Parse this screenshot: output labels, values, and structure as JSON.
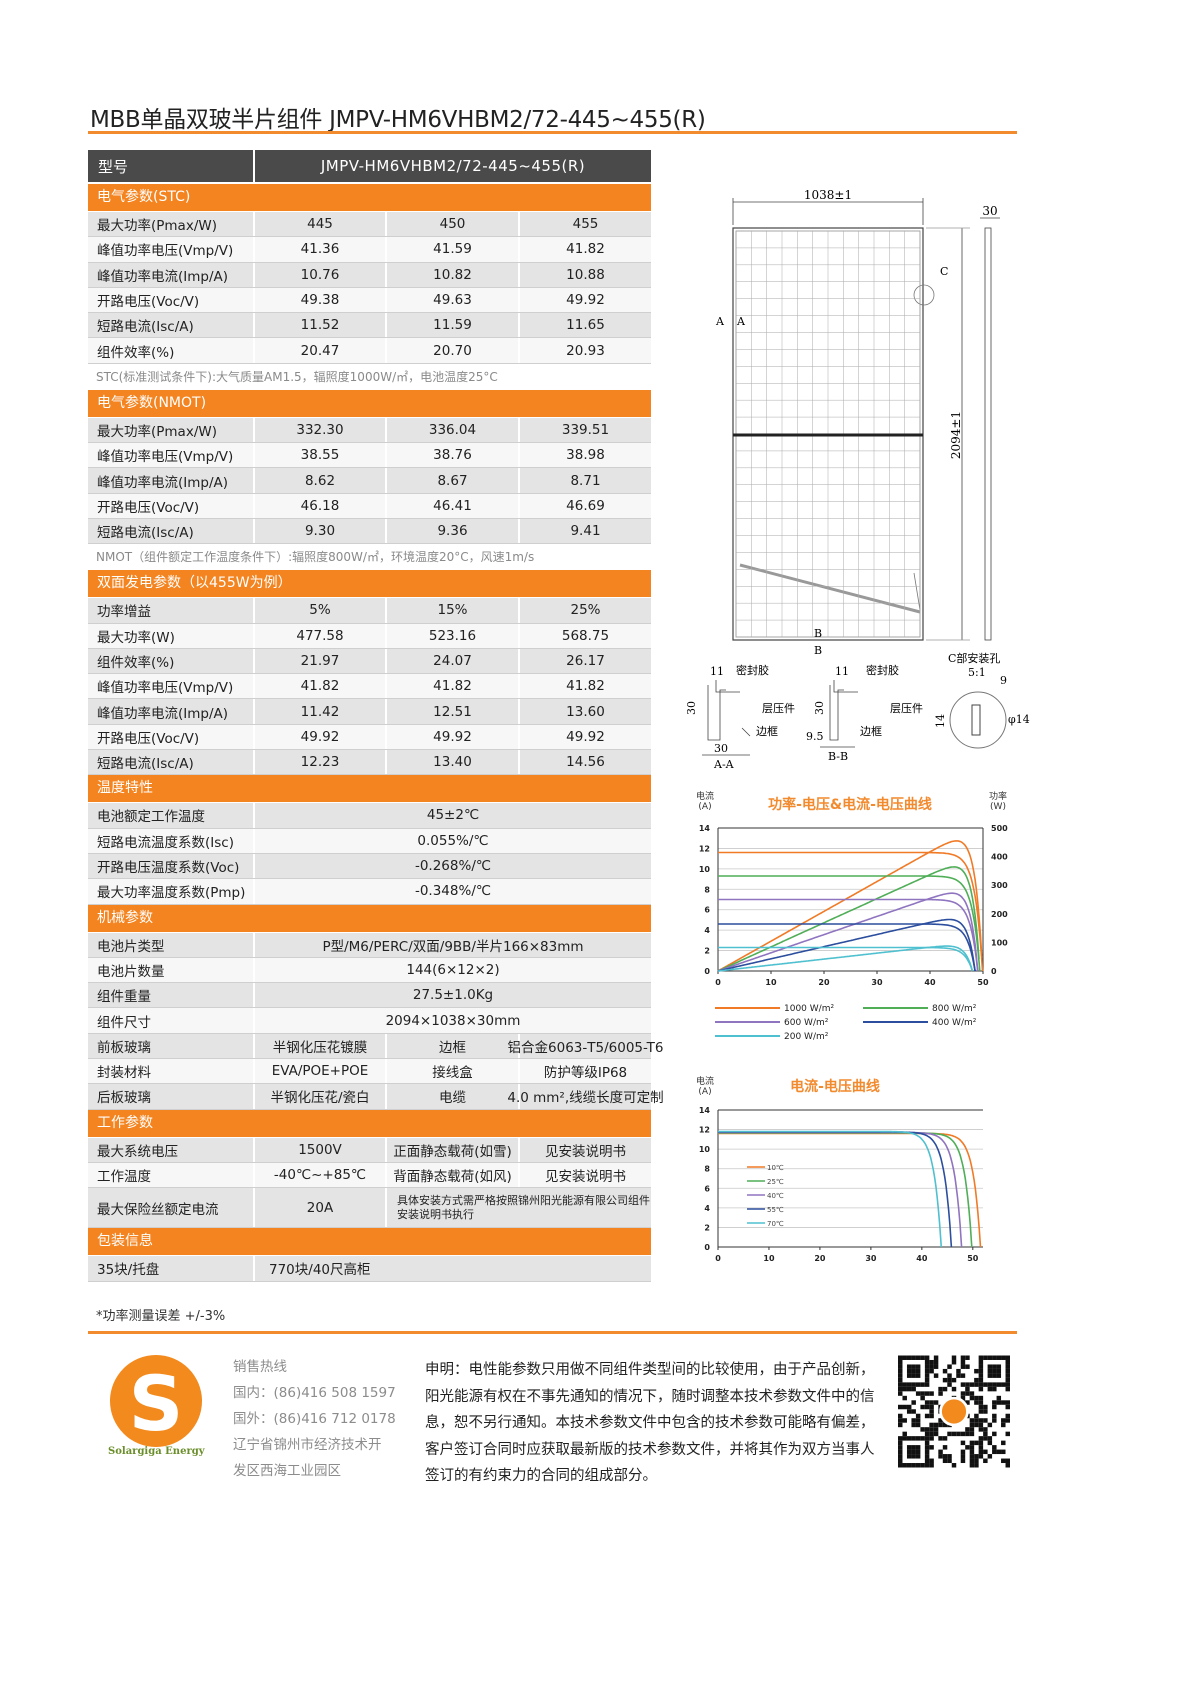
{
  "title": "MBB单晶双玻半片组件  JMPV-HM6VHBM2/72-445~455(R)",
  "spec_table": {
    "header": [
      "型号",
      "JMPV-HM6VHBM2/72-445~455(R)"
    ],
    "sections": [
      {
        "title": "电气参数(STC)",
        "rows": [
          [
            "最大功率(Pmax/W)",
            "445",
            "450",
            "455"
          ],
          [
            "峰值功率电压(Vmp/V)",
            "41.36",
            "41.59",
            "41.82"
          ],
          [
            "峰值功率电流(Imp/A)",
            "10.76",
            "10.82",
            "10.88"
          ],
          [
            "开路电压(Voc/V)",
            "49.38",
            "49.63",
            "49.92"
          ],
          [
            "短路电流(Isc/A)",
            "11.52",
            "11.59",
            "11.65"
          ],
          [
            "组件效率(%)",
            "20.47",
            "20.70",
            "20.93"
          ]
        ],
        "note": "STC(标准测试条件下):大气质量AM1.5，辐照度1000W/㎡，电池温度25°C"
      },
      {
        "title": "电气参数(NMOT)",
        "rows": [
          [
            "最大功率(Pmax/W)",
            "332.30",
            "336.04",
            "339.51"
          ],
          [
            "峰值功率电压(Vmp/V)",
            "38.55",
            "38.76",
            "38.98"
          ],
          [
            "峰值功率电流(Imp/A)",
            "8.62",
            "8.67",
            "8.71"
          ],
          [
            "开路电压(Voc/V)",
            "46.18",
            "46.41",
            "46.69"
          ],
          [
            "短路电流(Isc/A)",
            "9.30",
            "9.36",
            "9.41"
          ]
        ],
        "note": "NMOT（组件额定工作温度条件下）:辐照度800W/㎡，环境温度20°C，风速1m/s"
      },
      {
        "title": "双面发电参数（以455W为例）",
        "rows": [
          [
            "功率增益",
            "5%",
            "15%",
            "25%"
          ],
          [
            "最大功率(W)",
            "477.58",
            "523.16",
            "568.75"
          ],
          [
            "组件效率(%)",
            "21.97",
            "24.07",
            "26.17"
          ],
          [
            "峰值功率电压(Vmp/V)",
            "41.82",
            "41.82",
            "41.82"
          ],
          [
            "峰值功率电流(Imp/A)",
            "11.42",
            "12.51",
            "13.60"
          ],
          [
            "开路电压(Voc/V)",
            "49.92",
            "49.92",
            "49.92"
          ],
          [
            "短路电流(Isc/A)",
            "12.23",
            "13.40",
            "14.56"
          ]
        ]
      },
      {
        "title": "温度特性",
        "rows": [
          [
            "电池额定工作温度",
            "45±2℃"
          ],
          [
            "短路电流温度系数(Isc)",
            "0.055%/℃"
          ],
          [
            "开路电压温度系数(Voc)",
            "-0.268%/℃"
          ],
          [
            "最大功率温度系数(Pmp)",
            "-0.348%/℃"
          ]
        ]
      },
      {
        "title": "机械参数",
        "rows": [
          [
            "电池片类型",
            "P型/M6/PERC/双面/9BB/半片166×83mm"
          ],
          [
            "电池片数量",
            "144(6×12×2)"
          ],
          [
            "组件重量",
            "27.5±1.0Kg"
          ],
          [
            "组件尺寸",
            "2094×1038×30mm"
          ],
          [
            "前板玻璃",
            "半钢化压花镀膜",
            "边框",
            "铝合金6063-T5/6005-T6"
          ],
          [
            "封装材料",
            "EVA/POE+POE",
            "接线盒",
            "防护等级IP68"
          ],
          [
            "后板玻璃",
            "半钢化压花/瓷白",
            "电缆",
            "4.0 mm²,线缆长度可定制"
          ]
        ]
      },
      {
        "title": "工作参数",
        "rows": [
          [
            "最大系统电压",
            "1500V",
            "正面静态载荷(如雪)",
            "见安装说明书"
          ],
          [
            "工作温度",
            "-40℃~+85℃",
            "背面静态载荷(如风)",
            "见安装说明书"
          ],
          [
            "最大保险丝额定电流",
            "20A",
            "具体安装方式需严格按照锦州阳光能源有限公司组件安装说明书执行"
          ]
        ]
      },
      {
        "title": "包装信息",
        "rows": [
          [
            "35块/托盘",
            "770块/40尺高柜"
          ]
        ]
      }
    ]
  },
  "power_note": "*功率测量误差  +/-3%",
  "drawing": {
    "width_dim": "1038±1",
    "depth_dim": "30",
    "height_dim": "2094±1",
    "detail_c": "C",
    "section_a": "A",
    "section_a2": "A",
    "section_b": "B",
    "section_b2": "B",
    "aa": {
      "dim_top": "11",
      "seal": "密封胶",
      "laminate": "层压件",
      "height": "30",
      "frame": "边框",
      "width": "30",
      "label": "A-A"
    },
    "bb": {
      "dim_top": "11",
      "seal": "密封胶",
      "laminate": "层压件",
      "height": "30",
      "frame": "边框",
      "width": "9.5",
      "label": "B-B"
    },
    "c_detail": {
      "title": "C部安装孔",
      "scale": "5:1",
      "dim_a": "9",
      "dim_b": "14",
      "hole": "φ14"
    }
  },
  "chart_data": [
    {
      "type": "line",
      "title": "功率-电压&电流-电压曲线",
      "ylabel": "电流\n(A)",
      "y2label": "功率\n(W)",
      "xlim": [
        0,
        50
      ],
      "ylim": [
        0,
        14
      ],
      "y2lim": [
        0,
        500
      ],
      "xticks": [
        "0",
        "10",
        "20",
        "30",
        "40",
        "50"
      ],
      "yticks": [
        "0",
        "2",
        "4",
        "6",
        "8",
        "10",
        "12",
        "14"
      ],
      "y2ticks": [
        "0",
        "100",
        "200",
        "300",
        "400",
        "500"
      ],
      "grid": true,
      "legend": "bottom",
      "series": [
        {
          "name": "1000 W/m²",
          "color": "#f07a26",
          "isc": 11.6,
          "voc": 49.9,
          "pmax": 455,
          "vmp": 42
        },
        {
          "name": "800 W/m²",
          "color": "#4fae57",
          "isc": 9.3,
          "voc": 49.4,
          "pmax": 364,
          "vmp": 42
        },
        {
          "name": "600 W/m²",
          "color": "#8f74c0",
          "isc": 7.0,
          "voc": 49.0,
          "pmax": 272,
          "vmp": 42
        },
        {
          "name": "400 W/m²",
          "color": "#2c4e9e",
          "isc": 4.6,
          "voc": 48.5,
          "pmax": 180,
          "vmp": 42
        },
        {
          "name": "200 W/m²",
          "color": "#4fc0cf",
          "isc": 2.3,
          "voc": 48.0,
          "pmax": 87,
          "vmp": 41
        }
      ]
    },
    {
      "type": "line",
      "title": "电流-电压曲线",
      "ylabel": "电流\n(A)",
      "xlim": [
        0,
        52
      ],
      "ylim": [
        0,
        14
      ],
      "xticks": [
        "0",
        "10",
        "20",
        "30",
        "40",
        "50"
      ],
      "yticks": [
        "0",
        "2",
        "4",
        "6",
        "8",
        "10",
        "12",
        "14"
      ],
      "grid": true,
      "legend": "inside-left",
      "series": [
        {
          "name": "10℃",
          "color": "#f07a26",
          "isc": 11.6,
          "voc": 51.5
        },
        {
          "name": "25℃",
          "color": "#4fae57",
          "isc": 11.65,
          "voc": 49.8
        },
        {
          "name": "40℃",
          "color": "#8f74c0",
          "isc": 11.7,
          "voc": 47.8
        },
        {
          "name": "55℃",
          "color": "#2c4e9e",
          "isc": 11.75,
          "voc": 45.8
        },
        {
          "name": "70℃",
          "color": "#4fc0cf",
          "isc": 11.8,
          "voc": 43.8
        }
      ]
    }
  ],
  "footer": {
    "logo_letter": "S",
    "brand": "Solargiga Energy",
    "hotline_label": "销售热线",
    "domestic": "国内：(86)416 508 1597",
    "overseas": "国外：(86)416 712 0178",
    "address_1": "辽宁省锦州市经济技术开",
    "address_2": "发区西海工业园区",
    "declaration": "申明：电性能参数只用做不同组件类型间的比较使用，由于产品创新，阳光能源有权在不事先通知的情况下，随时调整本技术参数文件中的信息，恕不另行通知。本技术参数文件中包含的技术参数可能略有偏差，客户签订合同时应获取最新版的技术参数文件，并将其作为双方当事人签订的有约束力的合同的组成部分。"
  },
  "colors": {
    "accent": "#f48420",
    "header_dark": "#4a4a4a",
    "row_grey": "#e4e4e4"
  }
}
